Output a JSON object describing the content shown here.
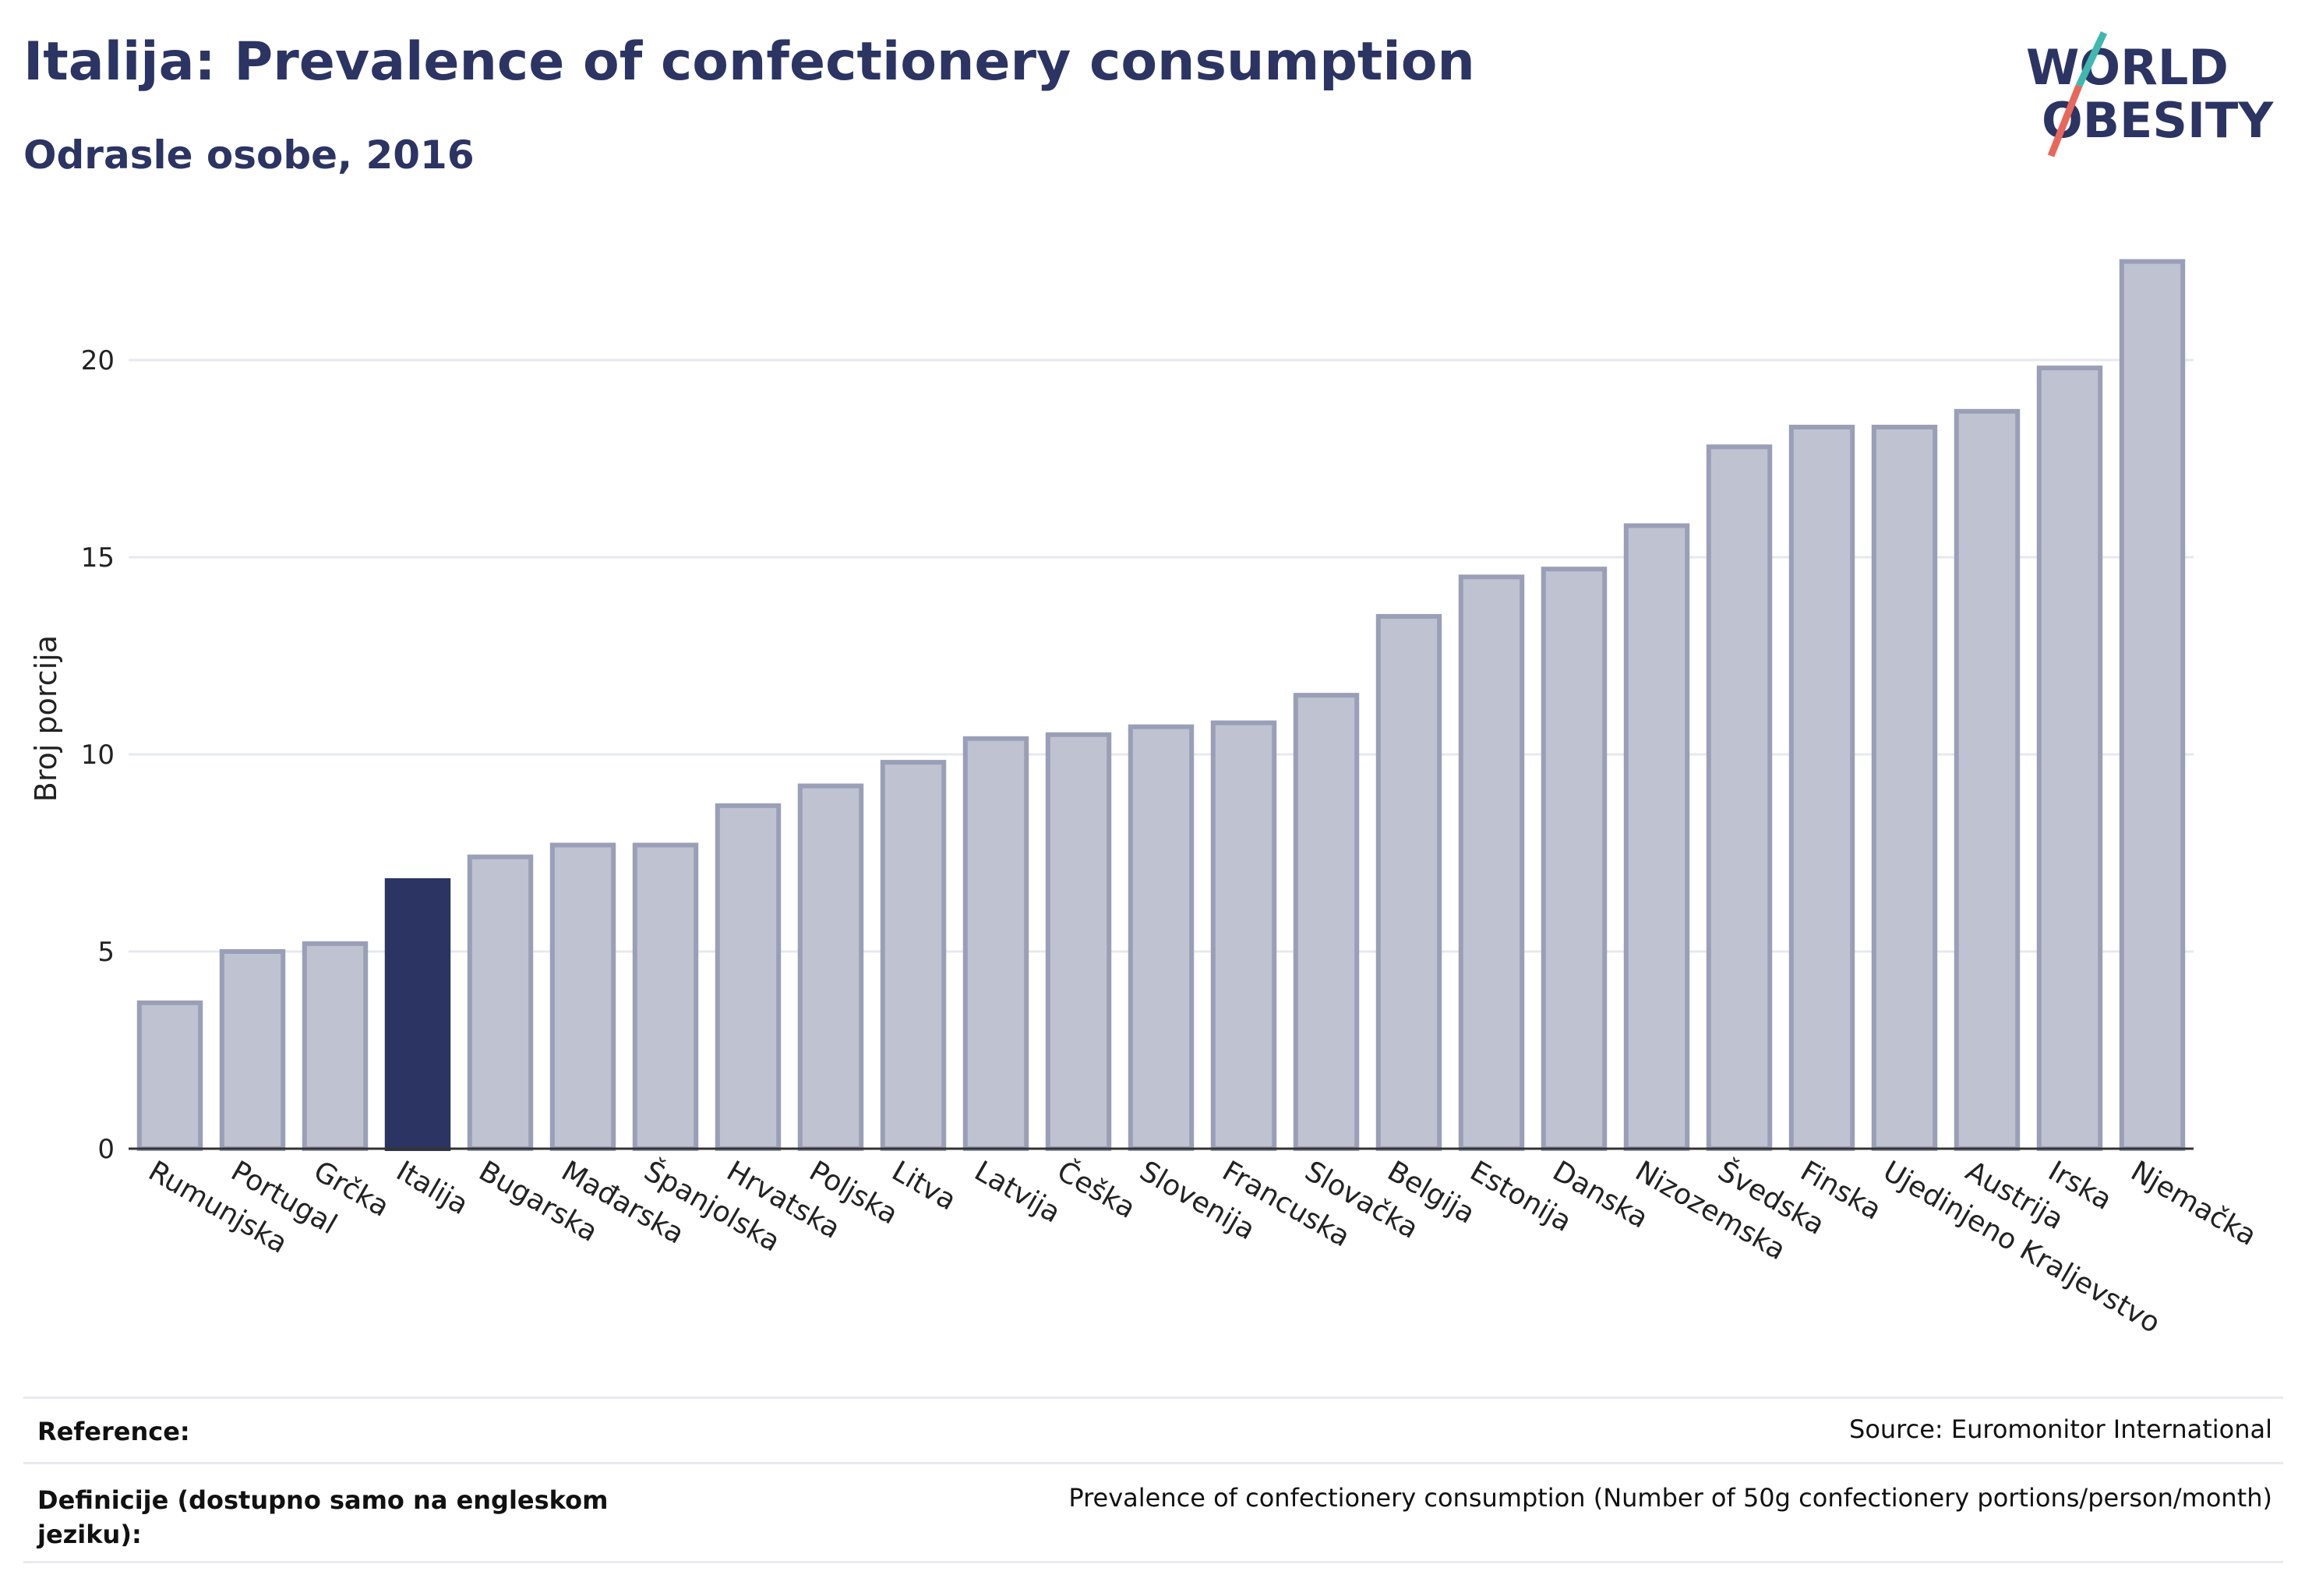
{
  "header": {
    "title": "Italija: Prevalence of confectionery consumption",
    "subtitle": "Odrasle osobe, 2016"
  },
  "logo": {
    "line1": "WORLD",
    "line2": "OBESITY",
    "accent_teal": "#3fb8b0",
    "accent_red": "#e8675a"
  },
  "footer": {
    "reference_label": "Reference:",
    "reference_value": "Source: Euromonitor International",
    "definition_label": "Definicije (dostupno samo na engleskom jeziku):",
    "definition_value": "Prevalence of confectionery consumption (Number of 50g confectionery portions/person/month)"
  },
  "colors": {
    "bar_default": "#bfc2d0",
    "bar_border": "#9a9fb7",
    "bar_highlight": "#2b3462"
  },
  "chart_data": {
    "type": "bar",
    "title": "Italija: Prevalence of confectionery consumption",
    "subtitle": "Odrasle osobe, 2016",
    "xlabel": "",
    "ylabel": "Broj porcija",
    "ylim": [
      0,
      23
    ],
    "yticks": [
      0,
      5,
      10,
      15,
      20
    ],
    "grid": true,
    "highlight": "Italija",
    "categories": [
      "Rumunjska",
      "Portugal",
      "Grčka",
      "Italija",
      "Bugarska",
      "Mađarska",
      "Španjolska",
      "Hrvatska",
      "Poljska",
      "Litva",
      "Latvija",
      "Češka",
      "Slovenija",
      "Francuska",
      "Slovačka",
      "Belgija",
      "Estonija",
      "Danska",
      "Nizozemska",
      "Švedska",
      "Finska",
      "Ujedinjeno Kraljevstvo",
      "Austrija",
      "Irska",
      "Njemačka"
    ],
    "values": [
      3.7,
      5.0,
      5.2,
      6.8,
      7.4,
      7.7,
      7.7,
      8.7,
      9.2,
      9.8,
      10.4,
      10.5,
      10.7,
      10.8,
      11.5,
      13.5,
      14.5,
      14.7,
      15.8,
      17.8,
      18.3,
      18.3,
      18.7,
      19.8,
      22.5
    ]
  }
}
